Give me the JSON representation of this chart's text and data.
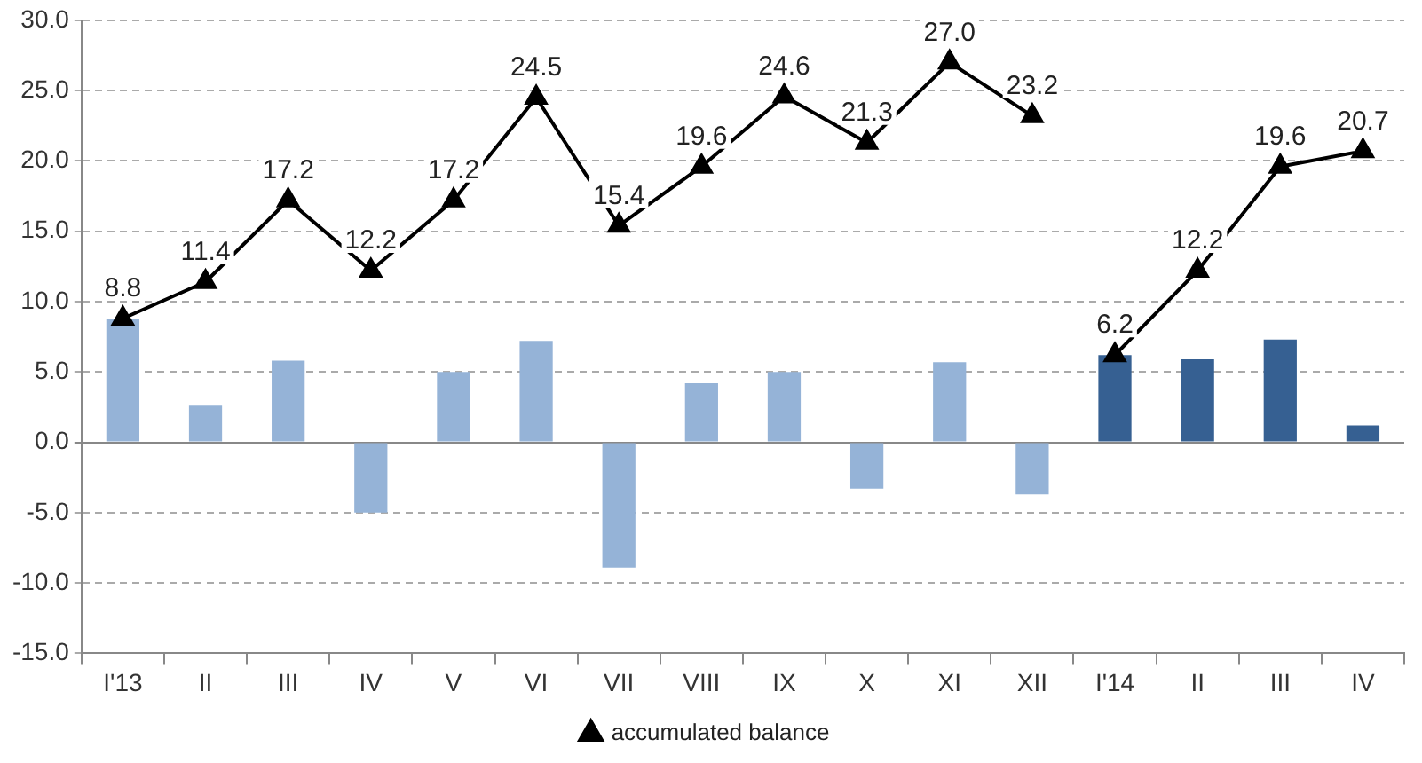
{
  "chart_data": {
    "type": "bar",
    "categories": [
      "I'13",
      "II",
      "III",
      "IV",
      "V",
      "VI",
      "VII",
      "VIII",
      "IX",
      "X",
      "XI",
      "XII",
      "I'14",
      "II",
      "III",
      "IV"
    ],
    "series": [
      {
        "colors": [
          "#95b3d7",
          "#95b3d7",
          "#95b3d7",
          "#95b3d7",
          "#95b3d7",
          "#95b3d7",
          "#95b3d7",
          "#95b3d7",
          "#95b3d7",
          "#95b3d7",
          "#95b3d7",
          "#95b3d7",
          "#366092",
          "#366092",
          "#366092",
          "#366092"
        ],
        "values": [
          8.8,
          2.6,
          5.8,
          -5.0,
          5.0,
          7.2,
          -8.9,
          4.2,
          5.0,
          -3.3,
          5.7,
          -3.7,
          6.2,
          5.9,
          7.3,
          1.2
        ]
      },
      {
        "type": "line",
        "name": "accumulated balance",
        "color": "#000000",
        "values": [
          8.8,
          11.4,
          17.2,
          12.2,
          17.2,
          24.5,
          15.4,
          19.6,
          24.6,
          21.3,
          27.0,
          23.2,
          null,
          null,
          null,
          null
        ],
        "value_labels": [
          "8.8",
          "11.4",
          "17.2",
          "12.2",
          "17.2",
          "24.5",
          "15.4",
          "19.6",
          "24.6",
          "21.3",
          "27.0",
          "23.2",
          null,
          null,
          null,
          null
        ]
      },
      {
        "type": "line",
        "color": "#000000",
        "values": [
          null,
          null,
          null,
          null,
          null,
          null,
          null,
          null,
          null,
          null,
          null,
          null,
          6.2,
          12.2,
          19.6,
          20.7
        ],
        "value_labels": [
          null,
          null,
          null,
          null,
          null,
          null,
          null,
          null,
          null,
          null,
          null,
          null,
          "6.2",
          "12.2",
          "19.6",
          "20.7"
        ]
      }
    ],
    "ylim": [
      -15,
      30
    ],
    "yticks": [
      {
        "value": -15,
        "label": "-15.0"
      },
      {
        "value": -10,
        "label": "-10.0"
      },
      {
        "value": -5,
        "label": "-5.0"
      },
      {
        "value": 0,
        "label": "0.0"
      },
      {
        "value": 5,
        "label": "5.0"
      },
      {
        "value": 10,
        "label": "10.0"
      },
      {
        "value": 15,
        "label": "15.0"
      },
      {
        "value": 20,
        "label": "20.0"
      },
      {
        "value": 25,
        "label": "25.0"
      },
      {
        "value": 30,
        "label": "30.0"
      }
    ],
    "grid": "y",
    "legend": "bottom",
    "marker": "triangle",
    "line_style": "solid"
  }
}
